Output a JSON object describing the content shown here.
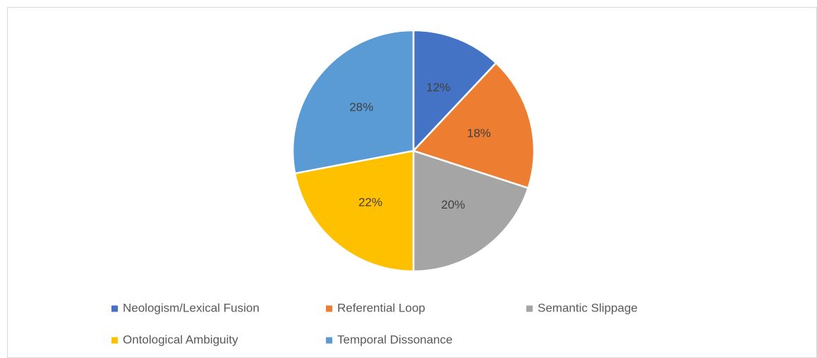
{
  "chart_data": {
    "type": "pie",
    "categories": [
      "Neologism/Lexical Fusion",
      "Referential Loop",
      "Semantic Slippage",
      "Ontological Ambiguity",
      "Temporal Dissonance"
    ],
    "values": [
      12,
      18,
      20,
      22,
      28
    ],
    "value_labels": [
      "12%",
      "18%",
      "20%",
      "22%",
      "28%"
    ],
    "colors": [
      "#4472c4",
      "#ed7d31",
      "#a5a5a5",
      "#ffc000",
      "#5b9bd5"
    ],
    "legend": "bottom"
  }
}
